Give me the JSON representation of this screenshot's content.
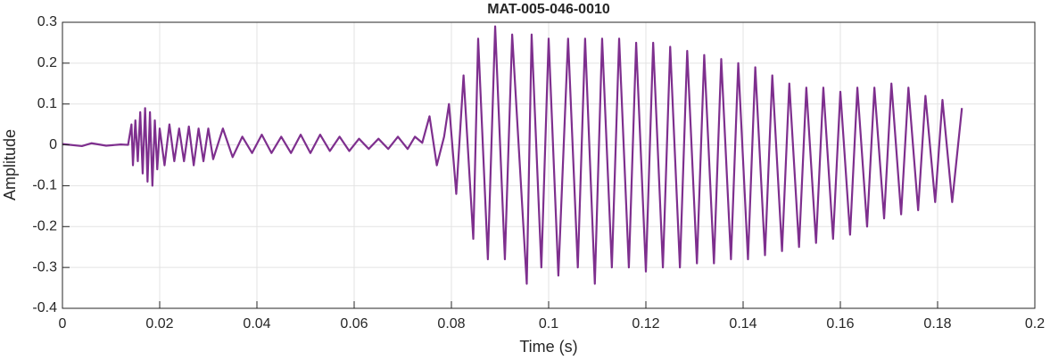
{
  "chart_data": {
    "type": "line",
    "title": "MAT-005-046-0010",
    "x_label": "Time (s)",
    "y_label": "Amplitude",
    "xlim": [
      0,
      0.2
    ],
    "ylim": [
      -0.4,
      0.3
    ],
    "xticks": [
      0,
      0.02,
      0.04,
      0.06,
      0.08,
      0.1,
      0.12,
      0.14,
      0.16,
      0.18,
      0.2
    ],
    "yticks": [
      -0.4,
      -0.3,
      -0.2,
      -0.1,
      0,
      0.1,
      0.2,
      0.3
    ],
    "grid": true,
    "series": [
      {
        "color": "#7e2f8e",
        "x": [
          0,
          0.004,
          0.006,
          0.009,
          0.012,
          0.0135,
          0.0142,
          0.0145,
          0.015,
          0.0155,
          0.016,
          0.0165,
          0.017,
          0.0175,
          0.018,
          0.0185,
          0.019,
          0.0195,
          0.02,
          0.021,
          0.022,
          0.023,
          0.024,
          0.025,
          0.026,
          0.027,
          0.028,
          0.029,
          0.03,
          0.031,
          0.033,
          0.035,
          0.037,
          0.039,
          0.041,
          0.043,
          0.045,
          0.047,
          0.049,
          0.051,
          0.053,
          0.055,
          0.057,
          0.059,
          0.061,
          0.063,
          0.065,
          0.067,
          0.069,
          0.071,
          0.0725,
          0.074,
          0.0755,
          0.077,
          0.0785,
          0.0795,
          0.081,
          0.0825,
          0.0845,
          0.0855,
          0.0875,
          0.089,
          0.091,
          0.0925,
          0.0955,
          0.0965,
          0.0985,
          0.1,
          0.102,
          0.104,
          0.106,
          0.1075,
          0.1095,
          0.111,
          0.113,
          0.1145,
          0.1165,
          0.118,
          0.12,
          0.1215,
          0.1235,
          0.125,
          0.127,
          0.1285,
          0.1305,
          0.132,
          0.134,
          0.1355,
          0.1375,
          0.139,
          0.141,
          0.1425,
          0.1445,
          0.146,
          0.148,
          0.1495,
          0.1515,
          0.153,
          0.155,
          0.1565,
          0.1585,
          0.16,
          0.162,
          0.1635,
          0.1655,
          0.167,
          0.169,
          0.1705,
          0.1725,
          0.174,
          0.176,
          0.1775,
          0.1795,
          0.181,
          0.183,
          0.185
        ],
        "values": [
          0.002,
          -0.003,
          0.004,
          -0.002,
          0.001,
          0,
          0.05,
          -0.05,
          0.06,
          -0.04,
          0.08,
          -0.07,
          0.09,
          -0.09,
          0.08,
          -0.1,
          0.06,
          -0.06,
          0.04,
          -0.05,
          0.05,
          -0.04,
          0.04,
          -0.04,
          0.045,
          -0.05,
          0.04,
          -0.04,
          0.04,
          -0.035,
          0.04,
          -0.03,
          0.02,
          -0.02,
          0.025,
          -0.02,
          0.02,
          -0.02,
          0.025,
          -0.02,
          0.025,
          -0.015,
          0.02,
          -0.015,
          0.015,
          -0.01,
          0.015,
          -0.01,
          0.02,
          -0.01,
          0.02,
          0.005,
          0.07,
          -0.05,
          0.02,
          0.1,
          -0.12,
          0.17,
          -0.23,
          0.26,
          -0.28,
          0.29,
          -0.28,
          0.27,
          -0.34,
          0.27,
          -0.3,
          0.26,
          -0.32,
          0.26,
          -0.3,
          0.26,
          -0.34,
          0.26,
          -0.3,
          0.26,
          -0.3,
          0.25,
          -0.31,
          0.25,
          -0.3,
          0.24,
          -0.3,
          0.23,
          -0.29,
          0.22,
          -0.29,
          0.21,
          -0.28,
          0.2,
          -0.28,
          0.19,
          -0.27,
          0.17,
          -0.26,
          0.15,
          -0.25,
          0.14,
          -0.24,
          0.14,
          -0.23,
          0.13,
          -0.22,
          0.14,
          -0.2,
          0.14,
          -0.18,
          0.15,
          -0.17,
          0.14,
          -0.16,
          0.12,
          -0.14,
          0.11,
          -0.14,
          0.09
        ]
      }
    ]
  }
}
